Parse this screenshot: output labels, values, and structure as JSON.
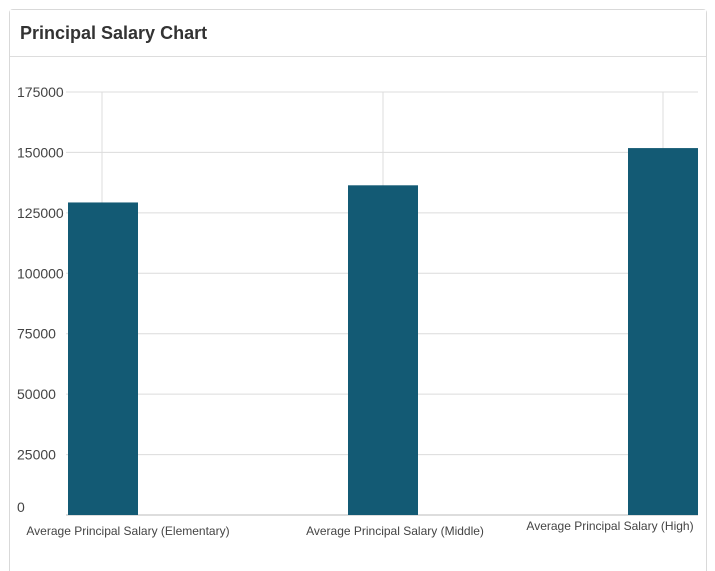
{
  "panel": {
    "title": "Principal Salary Chart"
  },
  "colors": {
    "bar": "#135a74",
    "grid": "#dcdcdc",
    "axis": "#bbbbbb"
  },
  "chart_data": {
    "type": "bar",
    "categories": [
      "Average Principal Salary (Elementary)",
      "Average Principal Salary (Middle)",
      "Average Principal Salary (High)"
    ],
    "values": [
      129300,
      136400,
      151800
    ],
    "ylim": [
      0,
      175000
    ],
    "yticks": [
      0,
      25000,
      50000,
      75000,
      100000,
      125000,
      150000,
      175000
    ],
    "grid": true,
    "legend": "none"
  }
}
